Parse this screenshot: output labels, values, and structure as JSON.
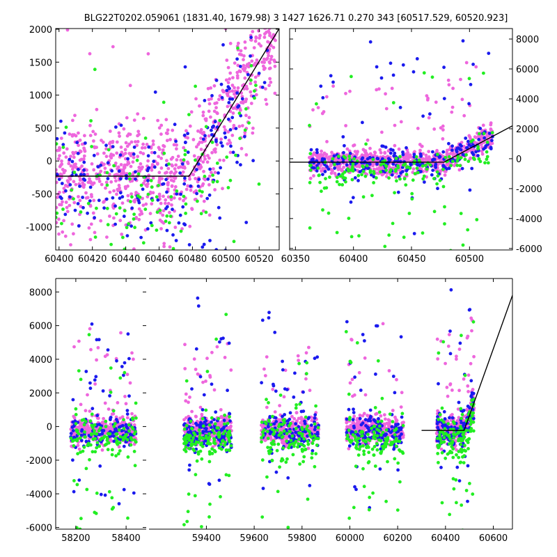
{
  "title": "BLG22T0202.059061 (1831.40, 1679.98)   3 1427 1626.71 0.270 343 [60517.529, 60520.923]",
  "colors": {
    "pink": "#ee66dd",
    "blue": "#1a1aee",
    "green": "#22ee22",
    "model": "#000000"
  },
  "chart_data": [
    {
      "type": "scatter",
      "panel": "top-left zoom",
      "xlim": [
        60398,
        60532
      ],
      "ylim": [
        -1350,
        2010
      ],
      "xticks": [
        60400,
        60420,
        60440,
        60460,
        60480,
        60500,
        60520
      ],
      "yticks": [
        -1000,
        -500,
        0,
        500,
        1000,
        1500,
        2000
      ],
      "yaxis_side": "left",
      "series": [
        {
          "color": "pink",
          "n": 900,
          "distribution": "flat baseline scattered around -200 until 60478, then rising with the model",
          "xrange": [
            60398,
            60530
          ]
        },
        {
          "color": "blue",
          "n": 230,
          "distribution": "baseline scatter with outliers",
          "xrange": [
            60398,
            60525
          ]
        },
        {
          "color": "green",
          "n": 150,
          "distribution": "scatter mostly below baseline",
          "xrange": [
            60398,
            60525
          ]
        }
      ],
      "model_line": [
        [
          60398,
          -230
        ],
        [
          60478,
          -230
        ],
        [
          60532,
          2010
        ]
      ]
    },
    {
      "type": "scatter",
      "panel": "top-right",
      "xlim": [
        60345,
        60537
      ],
      "ylim": [
        -6100,
        8700
      ],
      "xticks": [
        60350,
        60400,
        60450,
        60500
      ],
      "yticks": [
        -6000,
        -4000,
        -2000,
        0,
        2000,
        4000,
        6000,
        8000
      ],
      "yaxis_side": "right",
      "series": [
        {
          "color": "pink",
          "n": 800,
          "distribution": "dense band around -200 from 60362, rising after 60478 to about 1500",
          "xrange": [
            60362,
            60520
          ]
        },
        {
          "color": "blue",
          "n": 260,
          "distribution": "band with outliers up to 8200",
          "xrange": [
            60362,
            60520
          ]
        },
        {
          "color": "green",
          "n": 180,
          "distribution": "band biased low, outliers to -6000",
          "xrange": [
            60362,
            60520
          ]
        }
      ],
      "model_line": [
        [
          60345,
          -230
        ],
        [
          60478,
          -230
        ],
        [
          60537,
          2200
        ]
      ]
    },
    {
      "type": "scatter",
      "panel": "bottom full light curve (broken x-axis)",
      "ylim": [
        -6100,
        8800
      ],
      "yticks": [
        -6000,
        -4000,
        -2000,
        0,
        2000,
        4000,
        6000,
        8000
      ],
      "yaxis_side": "left",
      "segments": [
        {
          "xlim": [
            58120,
            58480
          ],
          "xticks": [
            58200,
            58400
          ],
          "seasons": [
            [
              58180,
              58440
            ]
          ]
        },
        {
          "xlim": [
            59160,
            60680
          ],
          "xticks": [
            59400,
            59600,
            59800,
            60000,
            60200,
            60400,
            60600
          ],
          "seasons": [
            [
              59305,
              59505
            ],
            [
              59630,
              59870
            ],
            [
              59985,
              60225
            ],
            [
              60362,
              60520
            ]
          ]
        }
      ],
      "series": [
        {
          "color": "pink",
          "n": 1800,
          "distribution": "dense bands around -200 with spread ~600 each season"
        },
        {
          "color": "blue",
          "n": 700,
          "distribution": "bands slightly below pink with outliers to 8000"
        },
        {
          "color": "green",
          "n": 650,
          "distribution": "bands below, with heavy negative tail to -6000"
        }
      ],
      "model_line": [
        [
          60300,
          -230
        ],
        [
          60478,
          -230
        ],
        [
          60680,
          7800
        ]
      ]
    }
  ]
}
